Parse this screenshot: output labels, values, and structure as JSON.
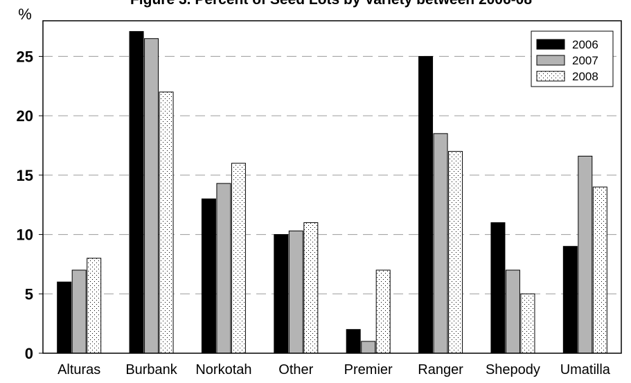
{
  "chart_data": {
    "type": "bar",
    "title": "Figure 3. Percent of Seed Lots by Variety between 2006-08",
    "ylabel": "%",
    "xlabel": "",
    "ylim": [
      0,
      28
    ],
    "yticks": [
      0,
      5,
      10,
      15,
      20,
      25
    ],
    "grid": "horizontal dashed",
    "legend_position": "top-right",
    "categories": [
      "Alturas",
      "Burbank",
      "Norkotah",
      "Other",
      "Premier",
      "Ranger",
      "Shepody",
      "Umatilla"
    ],
    "series": [
      {
        "name": "2006",
        "color": "#000000",
        "pattern": "solid",
        "values": [
          6,
          27.1,
          13,
          10,
          2,
          25,
          11,
          9
        ]
      },
      {
        "name": "2007",
        "color": "#b4b4b4",
        "pattern": "solid",
        "values": [
          7,
          26.5,
          14.3,
          10.3,
          1,
          18.5,
          7,
          16.6
        ]
      },
      {
        "name": "2008",
        "color": "#ffffff",
        "pattern": "dotted",
        "values": [
          8,
          22,
          16,
          11,
          7,
          17,
          5,
          14
        ]
      }
    ]
  }
}
